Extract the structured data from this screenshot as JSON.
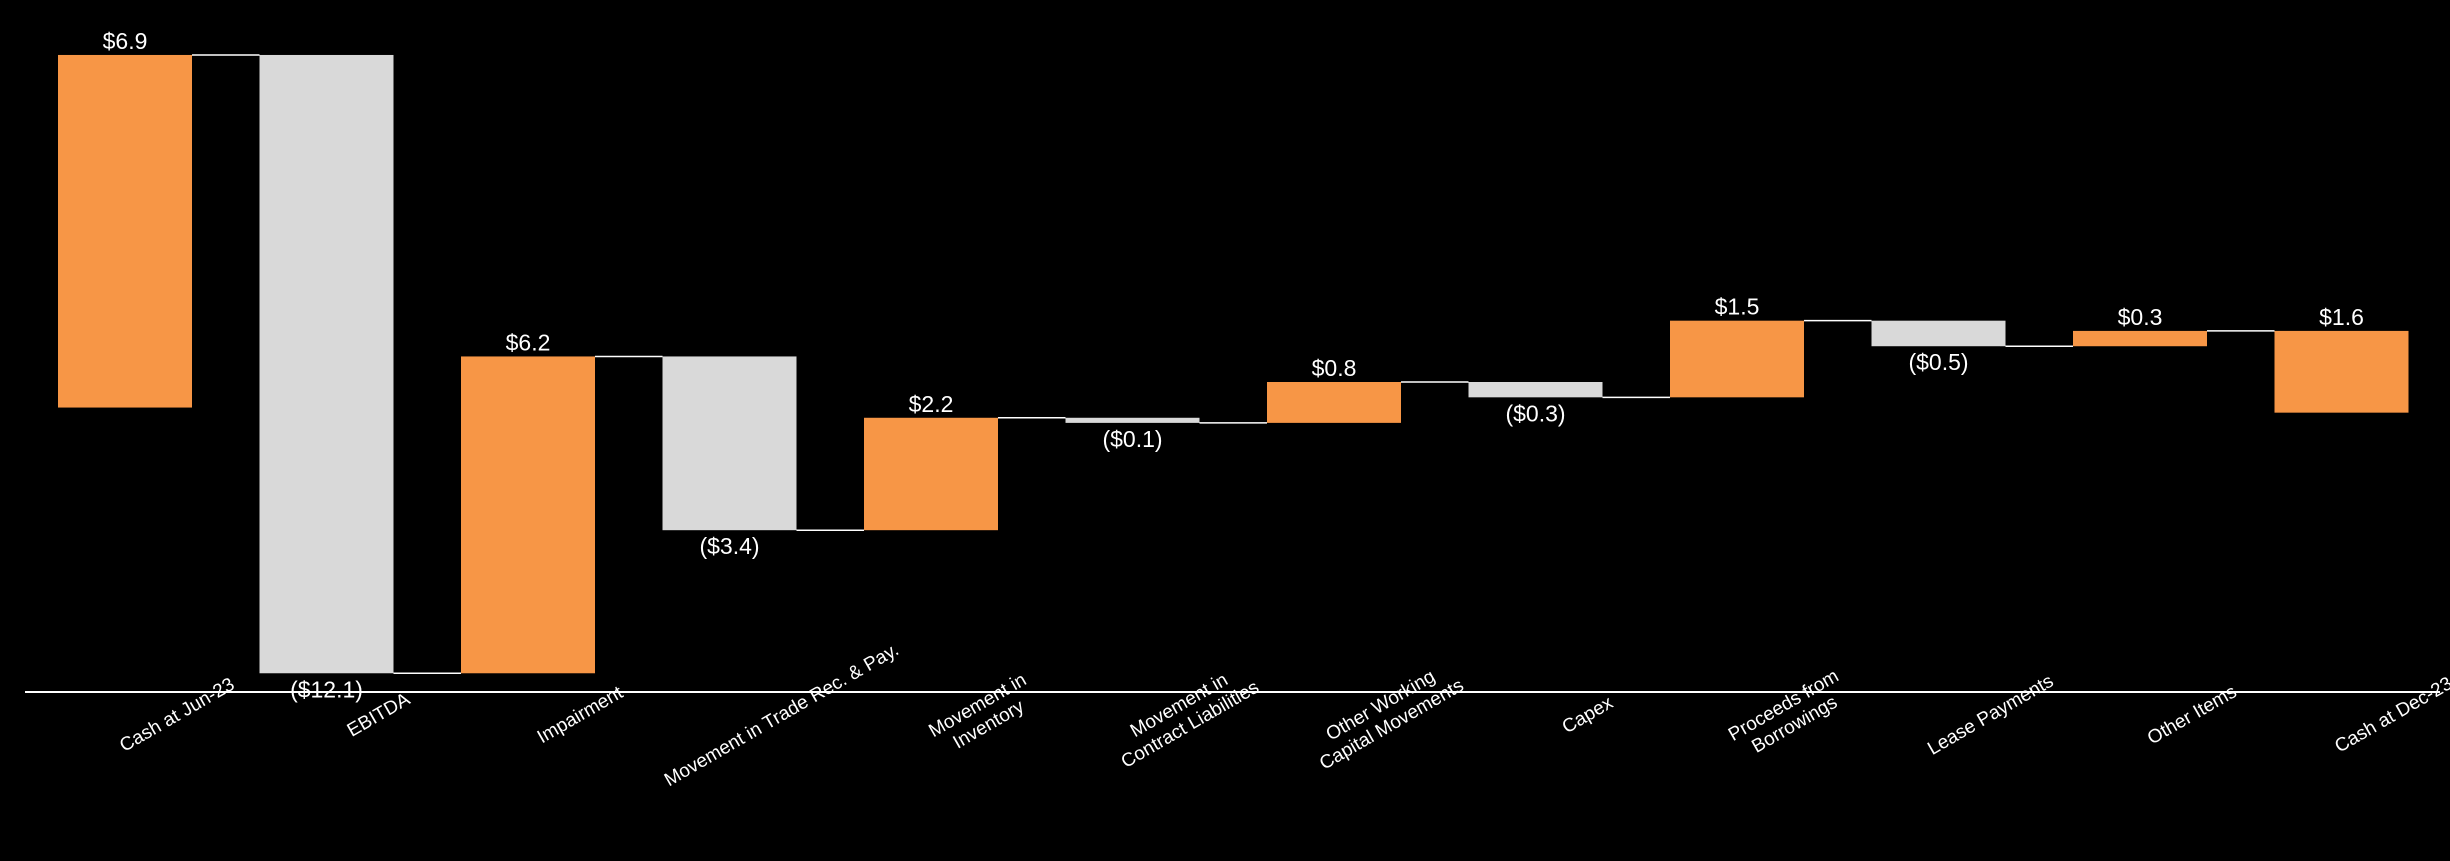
{
  "chart_data": {
    "type": "waterfall",
    "title": "",
    "xlabel": "",
    "ylabel": "",
    "categories": [
      [
        "Cash at Jun-23"
      ],
      [
        "EBITDA"
      ],
      [
        "Impairment"
      ],
      [
        "Movement in Trade Rec. & Pay."
      ],
      [
        "Movement in",
        "Inventory"
      ],
      [
        "Movement in",
        "Contract Liabilities"
      ],
      [
        "Other Working",
        "Capital Movements"
      ],
      [
        "Capex"
      ],
      [
        "Proceeds from",
        "Borrowings"
      ],
      [
        "Lease Payments"
      ],
      [
        "Other Items"
      ],
      [
        "Cash at Dec-23"
      ]
    ],
    "values": [
      6.9,
      -12.1,
      6.2,
      -3.4,
      2.2,
      -0.1,
      0.8,
      -0.3,
      1.5,
      -0.5,
      0.3,
      1.6
    ],
    "labels": [
      "$6.9",
      "($12.1)",
      "$6.2",
      "($3.4)",
      "$2.2",
      "($0.1)",
      "$0.8",
      "($0.3)",
      "$1.5",
      "($0.5)",
      "$0.3",
      "$1.6"
    ],
    "bar_kind": [
      "total",
      "delta",
      "delta",
      "delta",
      "delta",
      "delta",
      "delta",
      "delta",
      "delta",
      "delta",
      "delta",
      "total"
    ],
    "colors": {
      "positive": "#F79646",
      "negative": "#D9D9D9",
      "text": "#FFFFFF",
      "connector": "#FFFFFF",
      "axis": "#FFFFFF",
      "background": "#000000"
    },
    "grid": false,
    "legend": "none"
  }
}
